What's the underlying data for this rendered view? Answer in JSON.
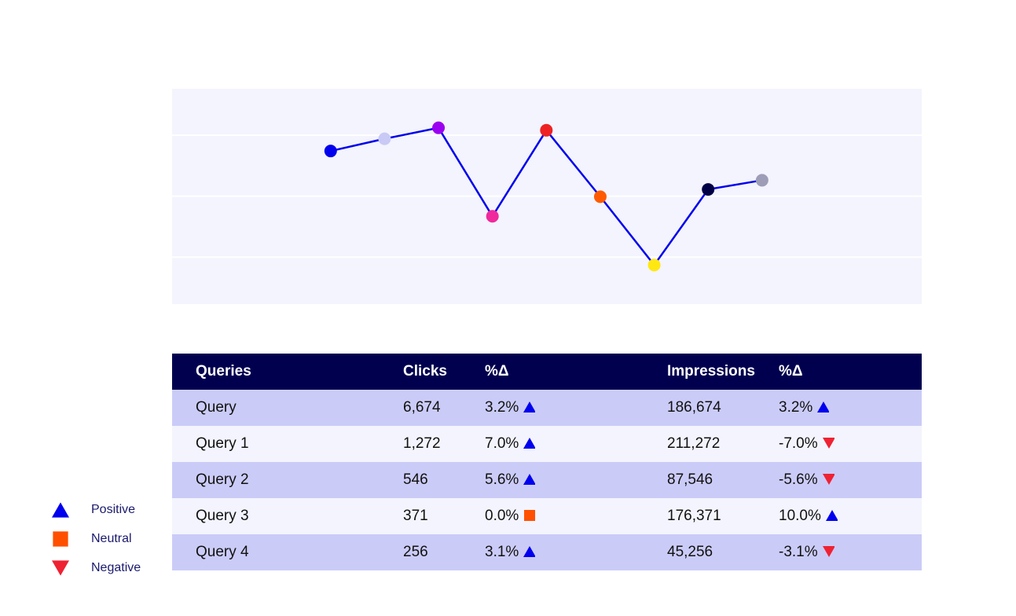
{
  "chart_data": {
    "type": "line",
    "x": [
      1,
      2,
      3,
      4,
      5,
      6,
      7,
      8,
      9
    ],
    "values": [
      2.74,
      2.94,
      3.12,
      1.67,
      3.08,
      1.99,
      0.87,
      2.11,
      2.26
    ],
    "point_colors": [
      "#0000ee",
      "#c9c9f5",
      "#9b00f0",
      "#f0299c",
      "#ee2222",
      "#ff5a00",
      "#ffe812",
      "#000045",
      "#9d9db8"
    ],
    "line_color": "#0000ee",
    "xlim": [
      -1.94,
      11.96
    ],
    "ylim": [
      0.23,
      3.76
    ],
    "gridlines": [
      1,
      2,
      3
    ],
    "grid": true,
    "background": "#f3f4fd"
  },
  "table": {
    "headers": [
      "Queries",
      "Clicks",
      "%Δ",
      "Impressions",
      "%Δ"
    ],
    "rows": [
      {
        "query": "Query",
        "clicks": "6,674",
        "clicks_pct": "3.2%",
        "clicks_dir": "positive",
        "impressions": "186,674",
        "impr_pct": "3.2%",
        "impr_dir": "positive"
      },
      {
        "query": "Query 1",
        "clicks": "1,272",
        "clicks_pct": "7.0%",
        "clicks_dir": "positive",
        "impressions": "211,272",
        "impr_pct": "-7.0%",
        "impr_dir": "negative"
      },
      {
        "query": "Query 2",
        "clicks": "546",
        "clicks_pct": "5.6%",
        "clicks_dir": "positive",
        "impressions": "87,546",
        "impr_pct": "-5.6%",
        "impr_dir": "negative"
      },
      {
        "query": "Query 3",
        "clicks": "371",
        "clicks_pct": "0.0%",
        "clicks_dir": "neutral",
        "impressions": "176,371",
        "impr_pct": "10.0%",
        "impr_dir": "positive"
      },
      {
        "query": "Query 4",
        "clicks": "256",
        "clicks_pct": "3.1%",
        "clicks_dir": "positive",
        "impressions": "45,256",
        "impr_pct": "-3.1%",
        "impr_dir": "negative"
      }
    ]
  },
  "legend": [
    {
      "label": "Positive",
      "icon": "triangle-up-icon",
      "color": "#0000ee"
    },
    {
      "label": "Neutral",
      "icon": "square-icon",
      "color": "#ff5000"
    },
    {
      "label": "Negative",
      "icon": "triangle-down-icon",
      "color": "#ee2233"
    }
  ]
}
